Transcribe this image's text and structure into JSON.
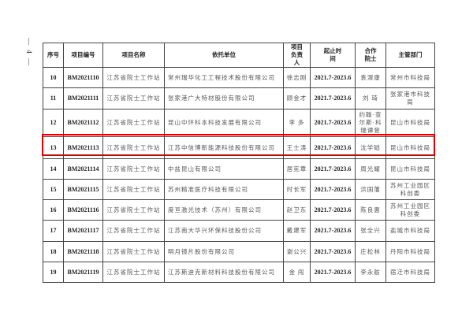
{
  "page_marker": "— 4 —",
  "headers": [
    "序号",
    "项目编号",
    "项目名称",
    "依托单位",
    "项目负责人",
    "起止时间",
    "合作院士",
    "主管部门"
  ],
  "rows": [
    [
      "10",
      "BM2021110",
      "江苏省院士工作站",
      "常州瑞华化工工程技术股份有限公司",
      "徐志刚",
      "2021.7-2023.6",
      "袁渭康",
      "常州市科技局"
    ],
    [
      "11",
      "BM2021111",
      "江苏省院士工作站",
      "张家港广大特材股份有限公司",
      "顾金才",
      "2021.7-2023.6",
      "刘 琦",
      "张家港市科技局"
    ],
    [
      "12",
      "BM2021112",
      "江苏省院士工作站",
      "昆山中环科本科技发展有限公司",
      "李 多",
      "2021.7-2023.6",
      "约翰·查尔斯·科瑞谭登",
      "昆山市科技局"
    ],
    [
      "13",
      "BM2021113",
      "江苏省院士工作站",
      "江苏中信博新能源科技股份有限公司",
      "王士涛",
      "2021.7-2023.6",
      "沈学础",
      "昆山市科技局"
    ],
    [
      "14",
      "BM2021114",
      "江苏省院士工作站",
      "中盐昆山有限公司",
      "居宪章",
      "2021.7-2023.6",
      "周光耀",
      "昆山市科技局"
    ],
    [
      "15",
      "BM2021115",
      "江苏省院士工作站",
      "苏州精准医疗科技有限公司",
      "时长军",
      "2021.7-2023.6",
      "洪国藩",
      "苏州工业园区科创委"
    ],
    [
      "16",
      "BM2021116",
      "江苏省院士工作站",
      "度亘激光技术（苏州）有限公司",
      "赵卫东",
      "2021.7-2023.6",
      "陈良惠",
      "苏州工业园区科创委"
    ],
    [
      "17",
      "BM2021117",
      "江苏省院士工作站",
      "江苏南大华兴环保科技股份公司",
      "戴建军",
      "2021.7-2023.6",
      "张全兴",
      "盐城市科技局"
    ],
    [
      "18",
      "BM2021118",
      "江苏省院士工作站",
      "明月镜片股份有限公司",
      "谢公兴",
      "2021.7-2023.6",
      "庄松林",
      "丹阳市科技局"
    ],
    [
      "19",
      "BM2021119",
      "江苏省院士工作站",
      "江苏斯迪克新材料科技股份有限公司",
      "金 闯",
      "2021.7-2023.6",
      "李永舫",
      "宿迁市科技局"
    ]
  ],
  "highlight_row": "13",
  "highlight_color": "#e00000"
}
